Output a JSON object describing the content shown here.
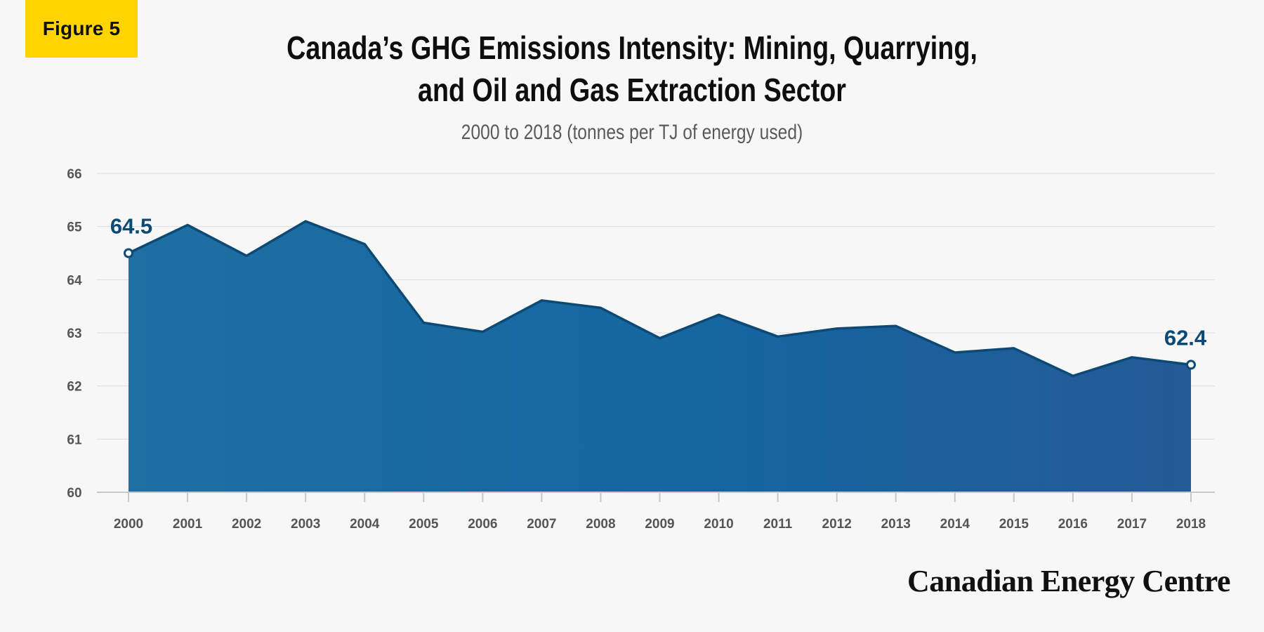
{
  "badge": {
    "label": "Figure 5"
  },
  "brand": {
    "name": "Canadian Energy Centre"
  },
  "colors": {
    "badge": "#ffd400",
    "area_start": "#1f6fa3",
    "area_end": "#245a96",
    "line": "#0c4a75",
    "label": "#0b4a74"
  },
  "chart_data": {
    "type": "area",
    "title_lines": [
      "Canada’s GHG Emissions Intensity: Mining, Quarrying,",
      "and Oil and Gas Extraction Sector"
    ],
    "subtitle": "2000 to 2018 (tonnes per TJ of energy used)",
    "xlabel": "",
    "ylabel": "",
    "categories": [
      "2000",
      "2001",
      "2002",
      "2003",
      "2004",
      "2005",
      "2006",
      "2007",
      "2008",
      "2009",
      "2010",
      "2011",
      "2012",
      "2013",
      "2014",
      "2015",
      "2016",
      "2017",
      "2018"
    ],
    "values": [
      64.5,
      65.03,
      64.45,
      65.1,
      64.67,
      63.19,
      63.02,
      63.61,
      63.47,
      62.9,
      63.34,
      62.93,
      63.08,
      63.13,
      62.63,
      62.71,
      62.19,
      62.54,
      62.4
    ],
    "ylim": [
      60,
      66
    ],
    "yticks": [
      60,
      61,
      62,
      63,
      64,
      65,
      66
    ],
    "grid": true,
    "legend": "none",
    "annotations": [
      {
        "category": "2000",
        "text": "64.5"
      },
      {
        "category": "2018",
        "text": "62.4"
      }
    ]
  }
}
